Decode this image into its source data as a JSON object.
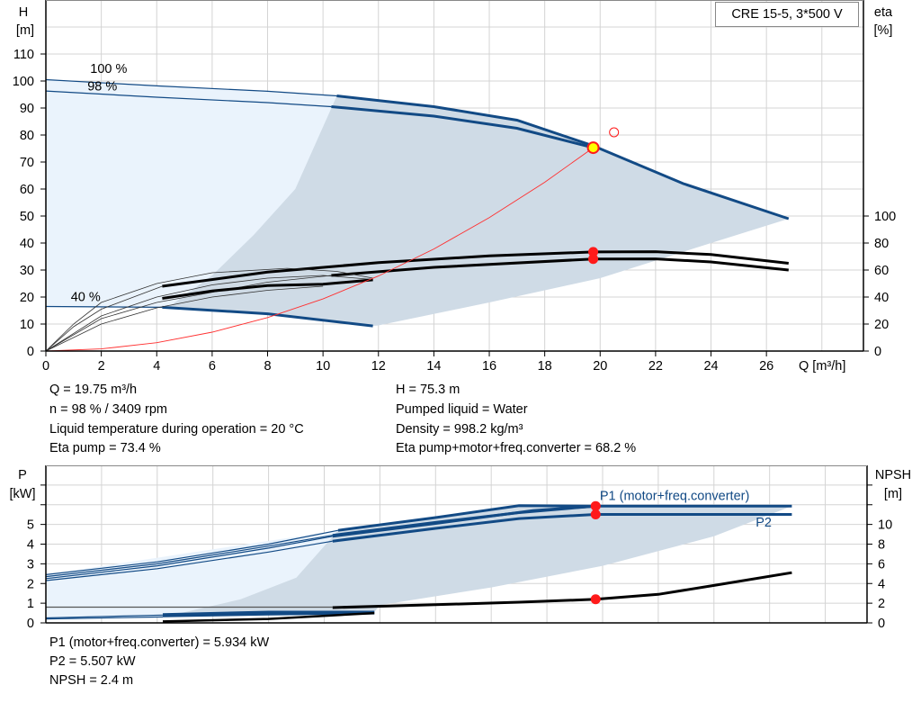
{
  "legend_box": "CRE 15-5, 3*500 V",
  "info_top_left": [
    "Q = 19.75 m³/h",
    "n = 98 % / 3409 rpm",
    "Liquid temperature during operation = 20 °C",
    "Eta pump = 73.4 %"
  ],
  "info_top_right": [
    "H = 75.3 m",
    "Pumped liquid = Water",
    "Density = 998.2 kg/m³",
    "Eta pump+motor+freq.converter = 68.2 %"
  ],
  "info_bottom": [
    "P1 (motor+freq.converter) = 5.934 kW",
    "P2 = 5.507 kW",
    "NPSH = 2.4 m"
  ],
  "colors": {
    "curve": "#124a85",
    "eta": "#000000",
    "system": "#ff3030",
    "shade_light": "#eaf3fc",
    "shade_dark": "#cfdbe6",
    "point": "#ff1a1a",
    "duty": "#ffff00"
  },
  "chart_data": [
    {
      "type": "line",
      "ylabel": "H\n[m]",
      "ylabel_lines": [
        "H",
        "[m]"
      ],
      "y2label_lines": [
        "eta",
        "[%]"
      ],
      "xlabel": "Q [m³/h]",
      "xlim": [
        0,
        29.5
      ],
      "ylim": [
        0,
        130
      ],
      "y2lim": [
        0,
        260
      ],
      "xticks": [
        0,
        2,
        4,
        6,
        8,
        10,
        12,
        14,
        16,
        18,
        20,
        22,
        24,
        26
      ],
      "yticks": [
        0,
        10,
        20,
        30,
        40,
        50,
        60,
        70,
        80,
        90,
        100,
        110
      ],
      "y2ticks": [
        0,
        20,
        40,
        60,
        80,
        100
      ],
      "grid": true,
      "speed_labels": [
        {
          "text": "100 %",
          "q": 1.6,
          "h": 101
        },
        {
          "text": "98 %",
          "q": 1.5,
          "h": 97.5
        },
        {
          "text": "40 %",
          "q": 0.9,
          "h": 18.5
        }
      ],
      "head_curves": [
        {
          "name": "100 %",
          "points": [
            [
              0,
              100.5
            ],
            [
              4,
              98.2
            ],
            [
              8,
              96.2
            ],
            [
              10.5,
              94.5
            ]
          ],
          "thick": [
            [
              10.5,
              94.5
            ],
            [
              14,
              90.5
            ],
            [
              17,
              85.5
            ],
            [
              19.75,
              76
            ],
            [
              23,
              62
            ],
            [
              26.8,
              49
            ]
          ]
        },
        {
          "name": "98 %",
          "points": [
            [
              0,
              96.3
            ],
            [
              4,
              94
            ],
            [
              8,
              92
            ],
            [
              10.3,
              90.5
            ]
          ],
          "thick": [
            [
              10.3,
              90.5
            ],
            [
              14,
              87
            ],
            [
              17,
              82.5
            ],
            [
              19.75,
              75.3
            ]
          ]
        },
        {
          "name": "40 %",
          "points": [
            [
              0,
              16.5
            ],
            [
              4.2,
              16.2
            ]
          ],
          "thick": [
            [
              4.2,
              16.2
            ],
            [
              8,
              13.8
            ],
            [
              11.8,
              9.3
            ]
          ]
        }
      ],
      "eta_curves": [
        {
          "name": "Eta pump",
          "points": [
            [
              0,
              0
            ],
            [
              1,
              18
            ],
            [
              2,
              31
            ],
            [
              4.2,
              48
            ]
          ],
          "thick": [
            [
              4.2,
              48
            ],
            [
              8,
              58.5
            ],
            [
              12,
              65.5
            ],
            [
              16,
              70.5
            ],
            [
              19.75,
              73.4
            ],
            [
              22,
              73.6
            ],
            [
              24,
              71.5
            ],
            [
              26.8,
              65
            ]
          ]
        },
        {
          "name": "Eta pump+motor+freq.converter",
          "points": [
            [
              0,
              0
            ],
            [
              2,
              24
            ],
            [
              4,
              36
            ],
            [
              8,
              51
            ],
            [
              10.3,
              56
            ]
          ],
          "thick": [
            [
              10.3,
              56
            ],
            [
              14,
              62
            ],
            [
              19.75,
              68.2
            ],
            [
              22,
              68.3
            ],
            [
              24,
              66
            ],
            [
              26.8,
              60
            ]
          ]
        },
        {
          "name": "eta 40 % pump",
          "points": [
            [
              0,
              0
            ],
            [
              1,
              20
            ],
            [
              2,
              36
            ],
            [
              4,
              50
            ],
            [
              6,
              58
            ],
            [
              8.7,
              61.3
            ],
            [
              10.5,
              59
            ],
            [
              11.8,
              54
            ]
          ],
          "thick": []
        },
        {
          "name": "eta 40 % total",
          "points": [
            [
              0,
              0
            ],
            [
              2,
              26
            ],
            [
              4,
              40
            ],
            [
              6,
              49
            ],
            [
              8,
              54
            ],
            [
              10,
              56
            ],
            [
              11.8,
              53
            ]
          ],
          "thick": []
        },
        {
          "name": "eta 40 % low",
          "points": [
            [
              0,
              0
            ],
            [
              2,
              20
            ],
            [
              4,
              32
            ],
            [
              6,
              40
            ],
            [
              8,
              45
            ],
            [
              10,
              48
            ]
          ],
          "thick": []
        },
        {
          "name": "eta 40 % thick",
          "points": [],
          "thick": [
            [
              4.2,
              39
            ],
            [
              6,
              44.5
            ],
            [
              8,
              48.5
            ],
            [
              10,
              49.5
            ],
            [
              11.8,
              52.7
            ]
          ]
        }
      ],
      "system_curve": [
        [
          0,
          0
        ],
        [
          2,
          0.8
        ],
        [
          4,
          3.1
        ],
        [
          6,
          7
        ],
        [
          8,
          12.4
        ],
        [
          10,
          19.3
        ],
        [
          12,
          27.8
        ],
        [
          14,
          37.8
        ],
        [
          16,
          49.4
        ],
        [
          18,
          62.5
        ],
        [
          19.75,
          75.3
        ]
      ],
      "duty_point": {
        "q": 19.75,
        "h": 75.3
      },
      "eta_points": [
        {
          "q": 19.75,
          "eta": 73.4
        },
        {
          "q": 19.75,
          "eta": 68.2
        }
      ],
      "setpoint_marker": {
        "q": 20.5,
        "h": 81
      },
      "area_light": [
        [
          0,
          100.5
        ],
        [
          10.5,
          94.5
        ],
        [
          10.5,
          16.4
        ],
        [
          0,
          16.5
        ]
      ],
      "area_dark": [
        [
          4.4,
          16.1
        ],
        [
          6,
          28
        ],
        [
          7.5,
          43
        ],
        [
          9,
          60
        ],
        [
          10.5,
          94.5
        ],
        [
          14,
          90.5
        ],
        [
          17,
          85.5
        ],
        [
          19.75,
          76
        ],
        [
          23,
          62
        ],
        [
          26.8,
          49
        ],
        [
          24,
          40
        ],
        [
          20,
          27
        ],
        [
          16,
          18
        ],
        [
          12,
          9.5
        ],
        [
          11.8,
          9.3
        ],
        [
          8,
          13.8
        ]
      ]
    },
    {
      "type": "line",
      "ylabel_lines": [
        "P",
        "[kW]"
      ],
      "y2label_lines": [
        "NPSH",
        "[m]"
      ],
      "xlim": [
        0,
        29.5
      ],
      "ylim": [
        0,
        8
      ],
      "y2lim": [
        0,
        16
      ],
      "yticks": [
        0,
        1,
        2,
        3,
        4,
        5
      ],
      "ygrid": [
        0,
        1,
        2,
        3,
        4,
        5,
        6,
        7
      ],
      "y2ticks": [
        0,
        2,
        4,
        6,
        8,
        10
      ],
      "y2minor": [
        12,
        14
      ],
      "grid": true,
      "labels": [
        {
          "text": "P1 (motor+freq.converter)",
          "q": 19.9,
          "p": 6.25
        },
        {
          "text": "P2",
          "q": 25.5,
          "p": 4.9
        }
      ],
      "power_curves": [
        {
          "name": "P1 (motor+freq.converter)",
          "points": [
            [
              0,
              2.45
            ],
            [
              4,
              3.1
            ],
            [
              8,
              4.0
            ],
            [
              10.5,
              4.7
            ]
          ],
          "thick": [
            [
              10.5,
              4.7
            ],
            [
              14,
              5.35
            ],
            [
              17,
              5.95
            ],
            [
              19.75,
              5.934
            ],
            [
              26.8,
              5.934
            ]
          ]
        },
        {
          "name": "P1 98 %",
          "points": [
            [
              0,
              2.35
            ],
            [
              4,
              3.0
            ],
            [
              8,
              3.9
            ],
            [
              10.3,
              4.45
            ]
          ],
          "thick": [
            [
              10.3,
              4.45
            ],
            [
              14,
              5.1
            ],
            [
              17,
              5.6
            ],
            [
              19.75,
              5.934
            ]
          ]
        },
        {
          "name": "P2 100 %",
          "points": [
            [
              0,
              2.25
            ],
            [
              4,
              2.9
            ],
            [
              8,
              3.8
            ],
            [
              10.3,
              4.4
            ]
          ],
          "thick": [
            [
              10.3,
              4.4
            ],
            [
              14,
              5.05
            ],
            [
              17.5,
              5.7
            ],
            [
              19.75,
              5.934
            ]
          ]
        },
        {
          "name": "P2",
          "points": [
            [
              0,
              2.15
            ],
            [
              4,
              2.75
            ],
            [
              8,
              3.6
            ],
            [
              10.3,
              4.15
            ]
          ],
          "thick": [
            [
              10.3,
              4.15
            ],
            [
              14,
              4.8
            ],
            [
              17,
              5.3
            ],
            [
              19.75,
              5.507
            ],
            [
              26.8,
              5.507
            ]
          ]
        },
        {
          "name": "P 40 % a",
          "points": [
            [
              0,
              0.25
            ],
            [
              4.2,
              0.4
            ]
          ],
          "thick": [
            [
              4.2,
              0.42
            ],
            [
              8,
              0.55
            ],
            [
              11.8,
              0.55
            ]
          ]
        },
        {
          "name": "P 40 % b",
          "points": [
            [
              0,
              0.2
            ],
            [
              4.2,
              0.3
            ]
          ],
          "thick": [
            [
              4.2,
              0.35
            ],
            [
              8,
              0.45
            ],
            [
              11.8,
              0.5
            ]
          ]
        }
      ],
      "npsh_curve": {
        "points": [
          [
            0,
            1.6
          ],
          [
            10.3,
            1.6
          ]
        ],
        "thick": [
          [
            10.3,
            1.55
          ],
          [
            14,
            1.85
          ],
          [
            17,
            2.1
          ],
          [
            19.75,
            2.4
          ],
          [
            22,
            2.9
          ],
          [
            24,
            3.8
          ],
          [
            26.8,
            5.1
          ]
        ]
      },
      "npsh_low": {
        "points": [],
        "thick": [
          [
            4.2,
            0.15
          ],
          [
            8,
            0.4
          ],
          [
            11.8,
            1.0
          ]
        ]
      },
      "points": [
        {
          "q": 19.75,
          "p": 5.934
        },
        {
          "q": 19.75,
          "p": 5.507
        }
      ],
      "npsh_point": {
        "q": 19.75,
        "npsh": 2.4
      },
      "area_light": [
        [
          0,
          2.45
        ],
        [
          10.5,
          4.7
        ],
        [
          10.5,
          0.5
        ],
        [
          0,
          0.2
        ]
      ],
      "area_dark": [
        [
          4.4,
          0.35
        ],
        [
          7,
          1.2
        ],
        [
          9,
          2.3
        ],
        [
          10.5,
          4.7
        ],
        [
          14,
          5.35
        ],
        [
          17,
          5.95
        ],
        [
          26.8,
          5.934
        ],
        [
          24,
          4.4
        ],
        [
          20,
          2.9
        ],
        [
          16,
          1.8
        ],
        [
          12,
          0.9
        ],
        [
          11.8,
          0.55
        ]
      ]
    }
  ]
}
